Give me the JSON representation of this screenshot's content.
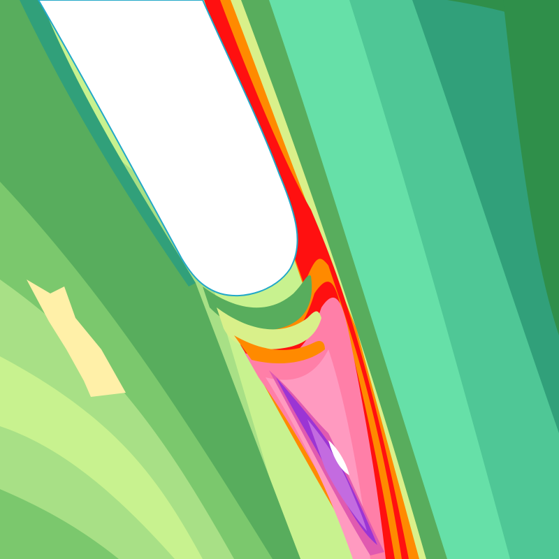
{
  "palette": {
    "background_light": "#c8f28f",
    "light_green": "#a8e086",
    "mid_green": "#7bc86d",
    "green": "#58ad5d",
    "dark_green": "#2f8f4a",
    "teal": "#31a07a",
    "teal_light": "#4fc796",
    "mint": "#66e0a8",
    "cream": "#fff0a8",
    "yellow_green": "#d9f08a",
    "orange": "#ff8a00",
    "red": "#ff1010",
    "pink": "#ff7fa8",
    "light_pink": "#ff9ac0",
    "magenta": "#e05ab0",
    "purple": "#9b35d4",
    "violet": "#c36be0",
    "white": "#ffffff",
    "cyan_edge": "#22a8c8"
  }
}
